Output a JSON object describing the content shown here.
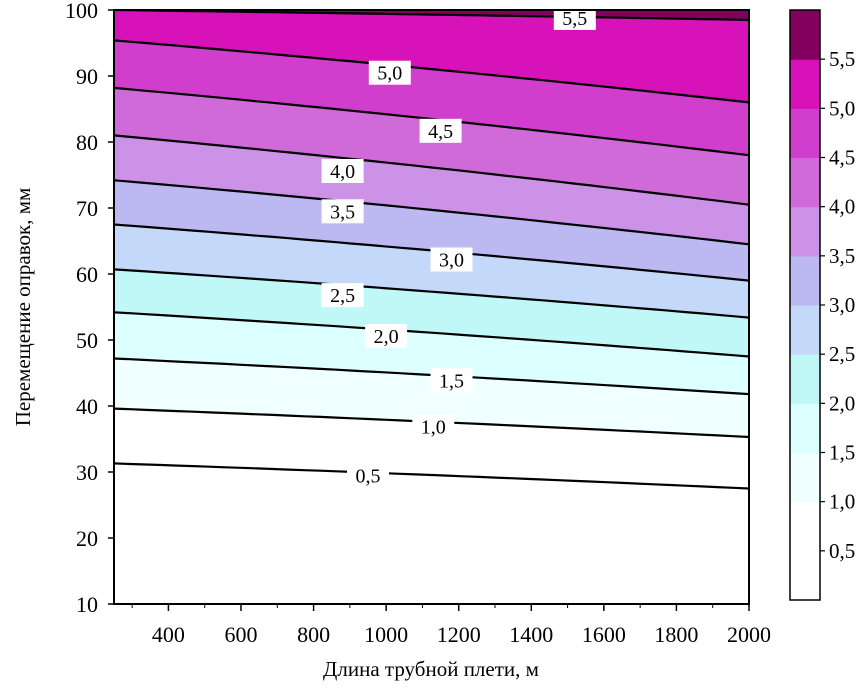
{
  "chart_data": {
    "type": "contour",
    "xlabel": "Длина трубной плети, м",
    "ylabel": "Перемещение оправок, мм",
    "xlim": [
      250,
      2000
    ],
    "ylim": [
      10,
      100
    ],
    "x_ticks": [
      400,
      600,
      800,
      1000,
      1200,
      1400,
      1600,
      1800,
      2000
    ],
    "y_ticks": [
      10,
      20,
      30,
      40,
      50,
      60,
      70,
      80,
      90,
      100
    ],
    "contour_lines": [
      {
        "level": 0.5,
        "label": "0,5",
        "y_at_xmin": 31.3,
        "y_at_xmax": 27.5,
        "label_x": 950,
        "label_y": 29.5
      },
      {
        "level": 1.0,
        "label": "1,0",
        "y_at_xmin": 39.6,
        "y_at_xmax": 35.3,
        "label_x": 1130,
        "label_y": 36.9
      },
      {
        "level": 1.5,
        "label": "1,5",
        "y_at_xmin": 47.2,
        "y_at_xmax": 41.8,
        "label_x": 1180,
        "label_y": 43.9
      },
      {
        "level": 2.0,
        "label": "2,0",
        "y_at_xmin": 54.2,
        "y_at_xmax": 47.5,
        "label_x": 1000,
        "label_y": 50.6
      },
      {
        "level": 2.5,
        "label": "2,5",
        "y_at_xmin": 60.7,
        "y_at_xmax": 53.4,
        "label_x": 880,
        "label_y": 56.8
      },
      {
        "level": 3.0,
        "label": "3,0",
        "y_at_xmin": 67.5,
        "y_at_xmax": 59.0,
        "label_x": 1180,
        "label_y": 62.2
      },
      {
        "level": 3.5,
        "label": "3,5",
        "y_at_xmin": 74.2,
        "y_at_xmax": 64.5,
        "label_x": 880,
        "label_y": 69.5
      },
      {
        "level": 4.0,
        "label": "4,0",
        "y_at_xmin": 81.0,
        "y_at_xmax": 70.5,
        "label_x": 880,
        "label_y": 75.6
      },
      {
        "level": 4.5,
        "label": "4,5",
        "y_at_xmin": 88.2,
        "y_at_xmax": 78.0,
        "label_x": 1150,
        "label_y": 81.7
      },
      {
        "level": 5.0,
        "label": "5,0",
        "y_at_xmin": 95.4,
        "y_at_xmax": 86.0,
        "label_x": 1010,
        "label_y": 90.5
      },
      {
        "level": 5.5,
        "label": "5,5",
        "y_at_xmin": 100.0,
        "y_at_xmax": 98.5,
        "label_x": 1520,
        "label_y": 98.8
      }
    ],
    "colorbar": {
      "levels": [
        0,
        0.5,
        1.0,
        1.5,
        2.0,
        2.5,
        3.0,
        3.5,
        4.0,
        4.5,
        5.0,
        5.5,
        6.0
      ],
      "tick_labels": [
        "0,5",
        "1,0",
        "1,5",
        "2,0",
        "2,5",
        "3,0",
        "3,5",
        "4,0",
        "4,5",
        "5,0",
        "5,5"
      ],
      "colors": [
        "#ffffff",
        "#ffffff",
        "#ffffff",
        "#f0ffff",
        "#dcffff",
        "#c0f8f8",
        "#c4d8fa",
        "#bcb8f2",
        "#cc92e8",
        "#cf6ad8",
        "#d13ecd",
        "#d612b8",
        "#83005f"
      ]
    }
  }
}
